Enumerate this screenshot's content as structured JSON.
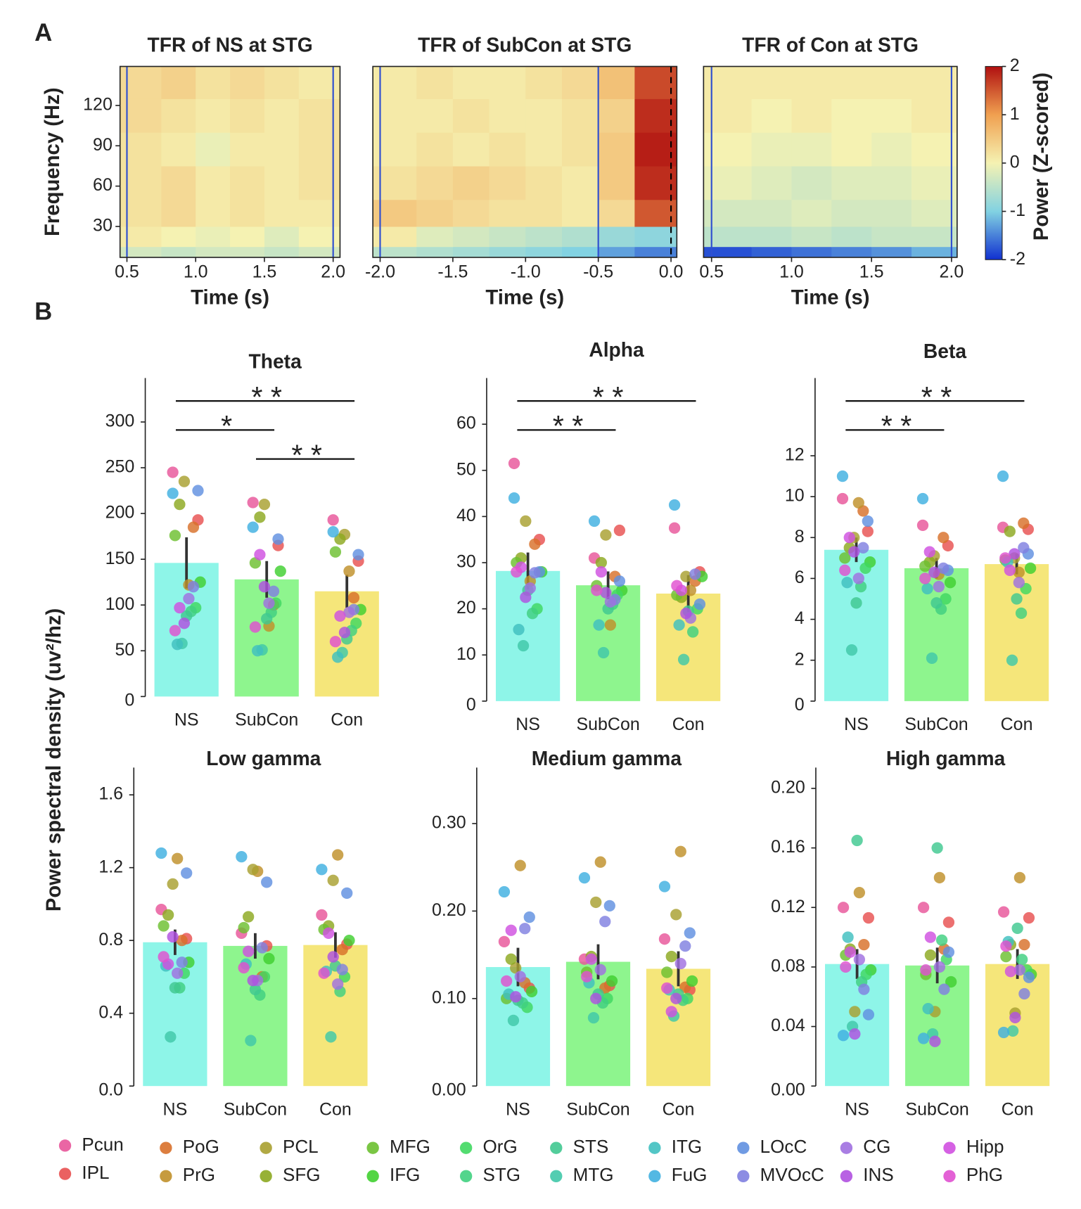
{
  "panel_labels": [
    "A",
    "B"
  ],
  "y_label": "Power spectral density (uv²/hz)",
  "colorbar": {
    "label": "Power (Z-scored)",
    "clim": [
      -2,
      2
    ],
    "ticks": [
      2,
      1,
      0,
      -1,
      -2
    ],
    "colors": [
      "#1030d0",
      "#82d2e2",
      "#f5f2b2",
      "#f0a050",
      "#b01010"
    ]
  },
  "legend": {
    "names": [
      "Pcun",
      "IPL",
      "PoG",
      "PrG",
      "PCL",
      "SFG",
      "MFG",
      "IFG",
      "OrG",
      "STG",
      "STS",
      "MTG",
      "ITG",
      "FuG",
      "LOcC",
      "MVOcC",
      "CG",
      "INS",
      "Hipp",
      "PhG"
    ],
    "colors": [
      "#e8559a",
      "#e85050",
      "#d8702a",
      "#c0902a",
      "#a8a030",
      "#8ca820",
      "#6cc030",
      "#40d030",
      "#40d860",
      "#40d080",
      "#40c890",
      "#40c8a8",
      "#40c0c0",
      "#40b0e0",
      "#6090e0",
      "#8080e0",
      "#a070e0",
      "#b050e0",
      "#d050e0",
      "#e050d0"
    ]
  },
  "chart_data": [
    {
      "type": "heatmap",
      "title": "TFR of NS at STG",
      "xlabel": "Time (s)",
      "ylabel": "Frequency (Hz)",
      "xlim": [
        0.45,
        2.05
      ],
      "ylim": [
        7,
        149
      ],
      "xticks": [
        0.5,
        {
          "value": 1.0,
          "label": "1.0"
        },
        1.5,
        {
          "value": 2.0,
          "label": "2.0"
        }
      ],
      "yticks": [
        30,
        60,
        90,
        120
      ],
      "x_edges": [
        0.45,
        0.75,
        1.0,
        1.25,
        1.5,
        1.75,
        2.05
      ],
      "y_edges": [
        7,
        15,
        30,
        50,
        75,
        100,
        125,
        149
      ],
      "z": [
        [
          -0.3,
          -0.4,
          -0.3,
          -0.3,
          -0.4,
          -0.3
        ],
        [
          0.1,
          0,
          -0.1,
          0,
          -0.2,
          0
        ],
        [
          0.2,
          0.3,
          0.1,
          0.2,
          0.1,
          0.1
        ],
        [
          0.2,
          0.3,
          0.1,
          0.2,
          0.1,
          0.2
        ],
        [
          0.2,
          0.1,
          -0.1,
          0.1,
          0.1,
          0.2
        ],
        [
          0.3,
          0.2,
          0.1,
          0.2,
          0.1,
          0.2
        ],
        [
          0.3,
          0.4,
          0.2,
          0.3,
          0.2,
          0.1
        ]
      ],
      "vlines": [
        {
          "x": 0.5,
          "color": "#3050d0",
          "dashed": false
        },
        {
          "x": 2.0,
          "color": "#3050d0",
          "dashed": false
        }
      ]
    },
    {
      "type": "heatmap",
      "title": "TFR of SubCon at STG",
      "xlabel": "Time (s)",
      "xlim": [
        -2.05,
        0.04
      ],
      "ylim": [
        7,
        149
      ],
      "xticks": [
        {
          "value": -2.0,
          "label": "-2.0"
        },
        -1.5,
        {
          "value": -1.0,
          "label": "-1.0"
        },
        -0.5,
        {
          "value": 0.0,
          "label": "0.0"
        }
      ],
      "x_edges": [
        -2.05,
        -1.75,
        -1.5,
        -1.25,
        -1.0,
        -0.75,
        -0.5,
        -0.25,
        0.04
      ],
      "y_edges": [
        7,
        15,
        30,
        50,
        75,
        100,
        125,
        149
      ],
      "z": [
        [
          -0.5,
          -0.6,
          -0.7,
          -0.8,
          -0.9,
          -1.0,
          -1.3,
          -1.5
        ],
        [
          0.1,
          -0.2,
          -0.3,
          -0.4,
          -0.5,
          -0.6,
          -0.8,
          -0.9
        ],
        [
          0.5,
          0.4,
          0.3,
          0.2,
          0.2,
          0.1,
          0.3,
          1.5
        ],
        [
          0.2,
          0.3,
          0.4,
          0.3,
          0.2,
          0.1,
          0.5,
          1.8
        ],
        [
          0.1,
          0.2,
          0.1,
          0.2,
          0.1,
          0.2,
          0.5,
          1.9
        ],
        [
          0.1,
          0.1,
          0.2,
          0.1,
          0.1,
          0.2,
          0.4,
          1.8
        ],
        [
          0.1,
          0.2,
          0.1,
          0.1,
          0.2,
          0.3,
          0.6,
          1.6
        ]
      ],
      "vlines": [
        {
          "x": -2.0,
          "color": "#3050d0",
          "dashed": false
        },
        {
          "x": -0.5,
          "color": "#3050d0",
          "dashed": false
        },
        {
          "x": 0.0,
          "color": "#000000",
          "dashed": true
        }
      ]
    },
    {
      "type": "heatmap",
      "title": "TFR of Con at STG",
      "xlabel": "Time (s)",
      "xlim": [
        0.45,
        2.035
      ],
      "ylim": [
        7,
        149
      ],
      "xticks": [
        0.5,
        {
          "value": 1.0,
          "label": "1.0"
        },
        1.5,
        {
          "value": 2.0,
          "label": "2.0"
        }
      ],
      "x_edges": [
        0.45,
        0.75,
        1.0,
        1.25,
        1.5,
        1.75,
        2.035
      ],
      "y_edges": [
        7,
        15,
        30,
        50,
        75,
        100,
        125,
        149
      ],
      "z": [
        [
          -1.8,
          -1.7,
          -1.6,
          -1.5,
          -1.4,
          -1.2
        ],
        [
          -0.5,
          -0.5,
          -0.4,
          -0.5,
          -0.4,
          -0.4
        ],
        [
          -0.3,
          -0.3,
          -0.2,
          -0.3,
          -0.3,
          -0.2
        ],
        [
          -0.1,
          -0.2,
          -0.3,
          -0.2,
          -0.2,
          -0.1
        ],
        [
          0,
          -0.1,
          -0.1,
          0,
          -0.1,
          0
        ],
        [
          0.1,
          0,
          0.1,
          0,
          0,
          0.1
        ],
        [
          0.1,
          0.1,
          0.1,
          0.1,
          0.1,
          0.1
        ]
      ],
      "vlines": [
        {
          "x": 0.5,
          "color": "#3050d0",
          "dashed": false
        },
        {
          "x": 2.0,
          "color": "#3050d0",
          "dashed": false
        }
      ]
    },
    {
      "type": "bar",
      "title": "Theta",
      "categories": [
        "NS",
        "SubCon",
        "Con"
      ],
      "colors": [
        "#8ef5e8",
        "#8ef58e",
        "#f5e67a"
      ],
      "values": [
        146,
        128,
        115
      ],
      "errors": [
        28,
        20,
        18
      ],
      "ylim": [
        0,
        348
      ],
      "yticks": [
        0,
        50,
        100,
        150,
        200,
        250,
        300
      ],
      "points": [
        [
          245,
          193,
          185,
          122,
          235,
          210,
          176,
          125,
          97,
          93,
          88,
          58,
          57,
          222,
          225,
          120,
          107,
          80,
          97,
          72
        ],
        [
          212,
          165,
          100,
          77,
          210,
          196,
          146,
          137,
          102,
          92,
          85,
          51,
          50,
          185,
          172,
          115,
          102,
          120,
          155,
          76
        ],
        [
          193,
          148,
          108,
          137,
          177,
          172,
          158,
          95,
          80,
          72,
          63,
          48,
          43,
          180,
          155,
          95,
          92,
          70,
          88,
          60
        ]
      ],
      "brackets": [
        {
          "from": "NS",
          "to": "Con",
          "label": "* *"
        },
        {
          "from": "NS",
          "to": "SubCon",
          "label": "*"
        },
        {
          "from": "SubCon",
          "to": "Con",
          "label": "* *"
        }
      ]
    },
    {
      "type": "bar",
      "title": "Alpha",
      "categories": [
        "NS",
        "SubCon",
        "Con"
      ],
      "colors": [
        "#8ef5e8",
        "#8ef58e",
        "#f5e67a"
      ],
      "values": [
        28.2,
        25.1,
        23.3
      ],
      "errors": [
        4,
        3,
        4
      ],
      "ylim": [
        0,
        70
      ],
      "yticks": [
        0,
        10,
        20,
        30,
        40,
        50,
        60
      ],
      "points": [
        [
          51.5,
          35,
          34,
          26,
          39,
          31,
          30,
          28,
          20,
          19,
          24,
          12,
          15.5,
          44,
          28,
          27.8,
          24.5,
          22.5,
          29,
          28
        ],
        [
          31,
          37,
          27,
          16.5,
          36,
          30,
          25,
          24,
          23,
          21,
          20,
          10.5,
          16.5,
          39,
          26,
          22,
          21.5,
          23.5,
          28,
          24
        ],
        [
          37.5,
          28,
          26,
          24,
          27,
          22.5,
          23,
          27,
          20,
          15,
          19.5,
          9,
          16.5,
          42.5,
          21,
          27.5,
          18,
          19,
          24,
          25
        ]
      ],
      "brackets": [
        {
          "from": "NS",
          "to": "Con",
          "label": "* *"
        },
        {
          "from": "NS",
          "to": "SubCon",
          "label": "* *"
        }
      ]
    },
    {
      "type": "bar",
      "title": "Beta",
      "categories": [
        "NS",
        "SubCon",
        "Con"
      ],
      "colors": [
        "#8ef5e8",
        "#8ef58e",
        "#f5e67a"
      ],
      "values": [
        7.4,
        6.5,
        6.7
      ],
      "errors": [
        0.6,
        0.5,
        0.5
      ],
      "ylim": [
        0,
        15.8
      ],
      "yticks": [
        0,
        2,
        4,
        6,
        8,
        10,
        12
      ],
      "points": [
        [
          9.9,
          8.3,
          9.3,
          9.7,
          8.0,
          7.5,
          7.0,
          6.8,
          6.5,
          5.6,
          4.8,
          2.5,
          5.8,
          11,
          8.8,
          7.5,
          6.0,
          7.3,
          8.0,
          6.4
        ],
        [
          8.6,
          7.6,
          8.0,
          6.2,
          7.1,
          6.8,
          6.6,
          5.8,
          5.0,
          4.5,
          4.8,
          2.1,
          5.5,
          9.9,
          6.4,
          6.5,
          5.6,
          6.3,
          7.3,
          6.0
        ],
        [
          8.5,
          8.4,
          8.7,
          6.3,
          7.0,
          8.3,
          6.9,
          6.5,
          5.5,
          4.3,
          5.0,
          2.0,
          6.8,
          11,
          7.2,
          7.5,
          5.8,
          7.2,
          6.4,
          7.0
        ]
      ],
      "brackets": [
        {
          "from": "NS",
          "to": "Con",
          "label": "* *"
        },
        {
          "from": "NS",
          "to": "SubCon",
          "label": "* *"
        }
      ]
    },
    {
      "type": "bar",
      "title": "Low gamma",
      "categories": [
        "NS",
        "SubCon",
        "Con"
      ],
      "colors": [
        "#8ef5e8",
        "#8ef58e",
        "#f5e67a"
      ],
      "values": [
        0.79,
        0.77,
        0.775
      ],
      "errors": [
        0.07,
        0.07,
        0.07
      ],
      "ylim": [
        0,
        1.75
      ],
      "yticks": [
        {
          "value": 0,
          "label": "0.0"
        },
        0.4,
        0.8,
        1.2,
        1.6
      ],
      "points": [
        [
          0.97,
          0.81,
          0.8,
          1.25,
          1.11,
          0.94,
          0.88,
          0.68,
          0.62,
          0.54,
          0.54,
          0.27,
          0.66,
          1.28,
          1.17,
          0.68,
          0.62,
          0.82,
          0.67,
          0.71
        ],
        [
          0.84,
          0.77,
          0.6,
          1.18,
          1.19,
          0.93,
          0.87,
          0.7,
          0.6,
          0.5,
          0.53,
          0.25,
          0.67,
          1.26,
          1.12,
          0.76,
          0.58,
          0.58,
          0.74,
          0.65
        ],
        [
          0.94,
          0.78,
          0.75,
          1.27,
          1.13,
          0.88,
          0.86,
          0.8,
          0.6,
          0.52,
          0.66,
          0.27,
          0.63,
          1.19,
          1.06,
          0.64,
          0.56,
          0.71,
          0.84,
          0.62
        ]
      ]
    },
    {
      "type": "bar",
      "title": "Medium gamma",
      "categories": [
        "NS",
        "SubCon",
        "Con"
      ],
      "colors": [
        "#8ef5e8",
        "#8ef58e",
        "#f5e67a"
      ],
      "values": [
        0.136,
        0.142,
        0.134
      ],
      "errors": [
        0.022,
        0.02,
        0.02
      ],
      "ylim": [
        0,
        0.364
      ],
      "yticks": [
        {
          "value": 0,
          "label": "0.00"
        },
        {
          "value": 0.1,
          "label": "0.10"
        },
        {
          "value": 0.2,
          "label": "0.20"
        },
        {
          "value": 0.3,
          "label": "0.30"
        }
      ],
      "points": [
        [
          0.165,
          0.112,
          0.118,
          0.252,
          0.135,
          0.145,
          0.1,
          0.108,
          0.09,
          0.095,
          0.098,
          0.075,
          0.105,
          0.222,
          0.193,
          0.18,
          0.125,
          0.102,
          0.178,
          0.12
        ],
        [
          0.145,
          0.115,
          0.112,
          0.256,
          0.21,
          0.148,
          0.13,
          0.12,
          0.1,
          0.095,
          0.105,
          0.078,
          0.118,
          0.238,
          0.206,
          0.188,
          0.133,
          0.1,
          0.145,
          0.125
        ],
        [
          0.168,
          0.11,
          0.113,
          0.268,
          0.196,
          0.148,
          0.13,
          0.12,
          0.1,
          0.098,
          0.105,
          0.08,
          0.11,
          0.228,
          0.175,
          0.16,
          0.14,
          0.1,
          0.085,
          0.112
        ]
      ]
    },
    {
      "type": "bar",
      "title": "High gamma",
      "categories": [
        "NS",
        "SubCon",
        "Con"
      ],
      "colors": [
        "#8ef5e8",
        "#8ef58e",
        "#f5e67a"
      ],
      "values": [
        0.082,
        0.081,
        0.082
      ],
      "errors": [
        0.01,
        0.012,
        0.01
      ],
      "ylim": [
        0,
        0.214
      ],
      "yticks": [
        {
          "value": 0,
          "label": "0.00"
        },
        {
          "value": 0.04,
          "label": "0.04"
        },
        {
          "value": 0.08,
          "label": "0.08"
        },
        {
          "value": 0.12,
          "label": "0.12"
        },
        {
          "value": 0.16,
          "label": "0.16"
        },
        {
          "value": 0.2,
          "label": "0.20"
        }
      ],
      "points": [
        [
          0.12,
          0.113,
          0.095,
          0.13,
          0.05,
          0.092,
          0.088,
          0.078,
          0.075,
          0.07,
          0.165,
          0.04,
          0.1,
          0.034,
          0.048,
          0.065,
          0.085,
          0.035,
          0.09,
          0.08
        ],
        [
          0.12,
          0.11,
          0.092,
          0.14,
          0.05,
          0.088,
          0.075,
          0.07,
          0.085,
          0.098,
          0.16,
          0.035,
          0.052,
          0.032,
          0.09,
          0.065,
          0.08,
          0.03,
          0.1,
          0.078
        ],
        [
          0.117,
          0.113,
          0.095,
          0.14,
          0.049,
          0.095,
          0.087,
          0.075,
          0.078,
          0.085,
          0.106,
          0.037,
          0.097,
          0.036,
          0.073,
          0.062,
          0.078,
          0.046,
          0.077,
          0.094
        ]
      ]
    }
  ]
}
